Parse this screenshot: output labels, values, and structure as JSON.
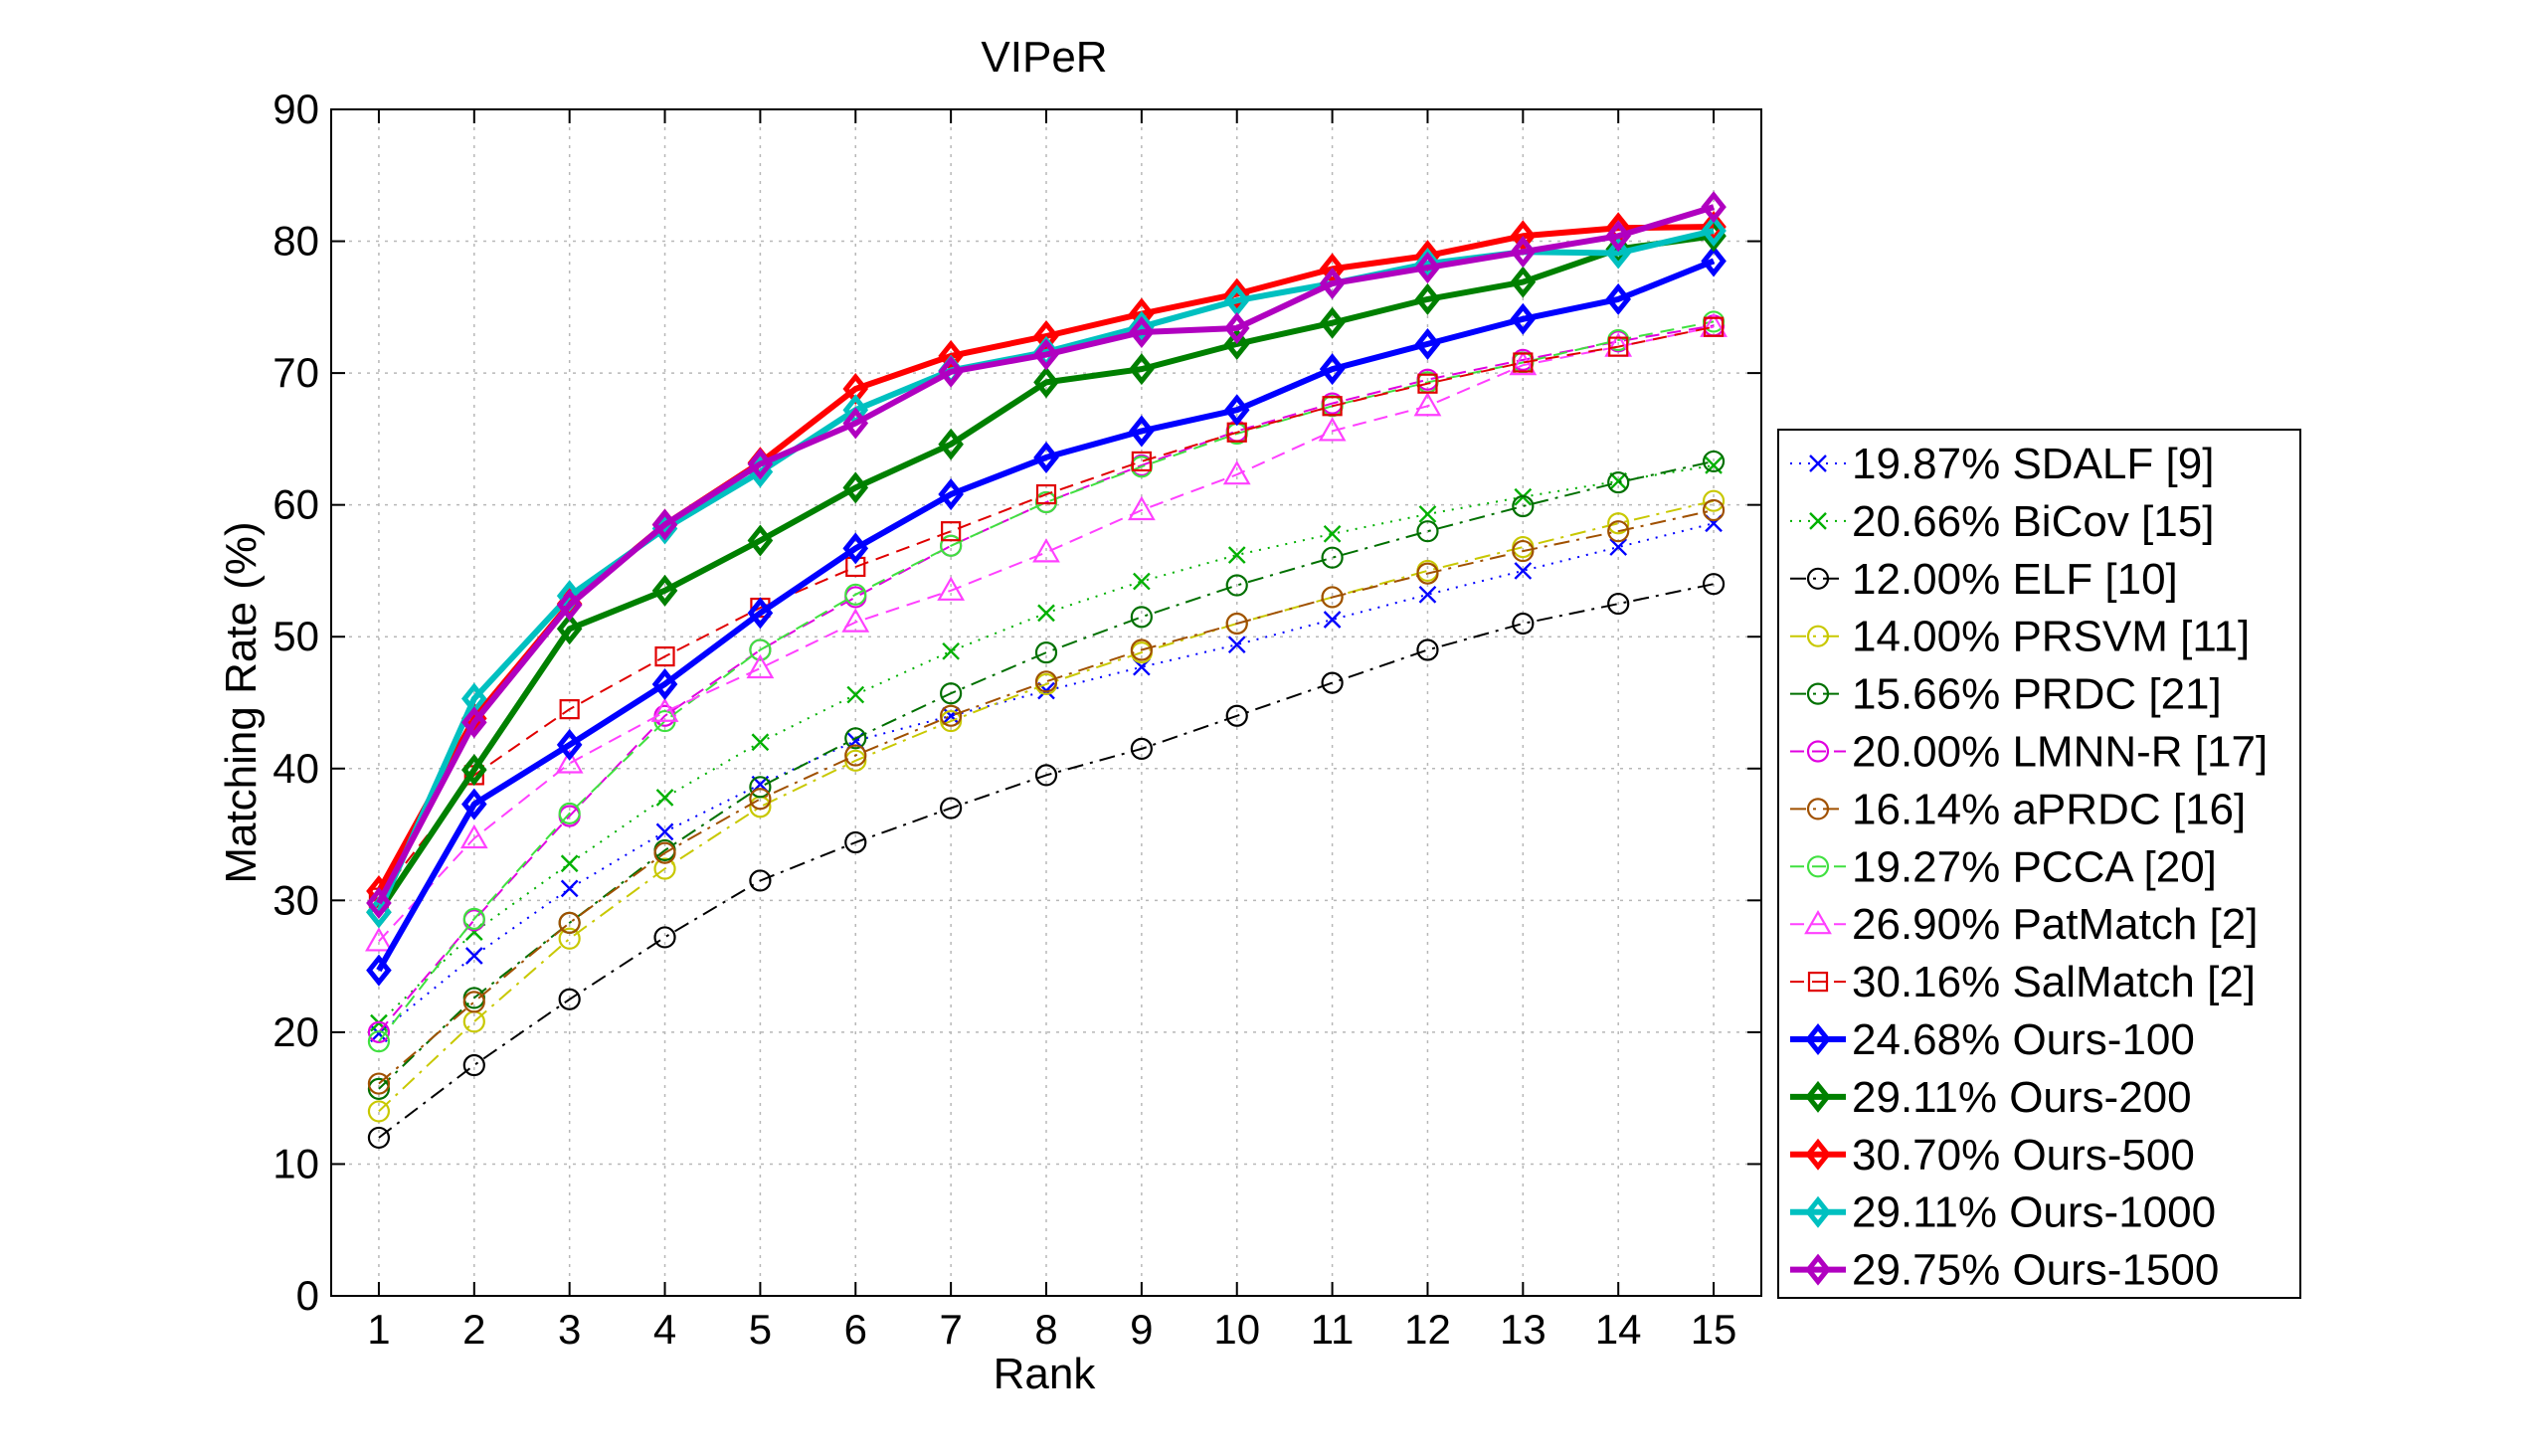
{
  "chart_data": {
    "type": "line",
    "title": "VIPeR",
    "xlabel": "Rank",
    "ylabel": "Matching Rate (%)",
    "xlim": [
      0.5,
      15.5
    ],
    "ylim": [
      0,
      90
    ],
    "x": [
      1,
      2,
      3,
      4,
      5,
      6,
      7,
      8,
      9,
      10,
      11,
      12,
      13,
      14,
      15
    ],
    "xticks": [
      "1",
      "2",
      "3",
      "4",
      "5",
      "6",
      "7",
      "8",
      "9",
      "10",
      "11",
      "12",
      "13",
      "14",
      "15"
    ],
    "yticks": [
      "0",
      "10",
      "20",
      "30",
      "40",
      "50",
      "60",
      "70",
      "80",
      "90"
    ],
    "grid": true,
    "legend_position": "right",
    "series": [
      {
        "name": "19.87% SDALF [9]",
        "color": "#0000ff",
        "marker": "x",
        "line": "dotted",
        "bold": false,
        "values": [
          19.9,
          25.8,
          30.9,
          35.2,
          38.8,
          42.1,
          44.0,
          45.9,
          47.7,
          49.4,
          51.3,
          53.2,
          55.0,
          56.8,
          58.6
        ]
      },
      {
        "name": "20.66% BiCov [15]",
        "color": "#00b000",
        "marker": "x",
        "line": "dotted",
        "bold": false,
        "values": [
          20.7,
          27.6,
          32.8,
          37.8,
          42.0,
          45.6,
          48.9,
          51.8,
          54.2,
          56.2,
          57.8,
          59.3,
          60.6,
          61.8,
          63.0
        ]
      },
      {
        "name": "12.00% ELF [10]",
        "color": "#000000",
        "marker": "circle",
        "line": "dashdot",
        "bold": false,
        "values": [
          12.0,
          17.5,
          22.5,
          27.2,
          31.5,
          34.4,
          37.0,
          39.5,
          41.5,
          44.0,
          46.5,
          49.0,
          51.0,
          52.5,
          54.0
        ]
      },
      {
        "name": "14.00% PRSVM [11]",
        "color": "#c8c800",
        "marker": "circle",
        "line": "dashdot",
        "bold": false,
        "values": [
          14.0,
          20.8,
          27.1,
          32.4,
          37.1,
          40.6,
          43.6,
          46.4,
          48.8,
          51.0,
          53.0,
          55.0,
          56.8,
          58.6,
          60.3
        ]
      },
      {
        "name": "15.66% PRDC [21]",
        "color": "#007000",
        "marker": "circle",
        "line": "dashdot",
        "bold": false,
        "values": [
          15.7,
          22.6,
          28.3,
          33.8,
          38.6,
          42.3,
          45.7,
          48.8,
          51.5,
          53.9,
          56.0,
          58.0,
          59.9,
          61.7,
          63.3
        ]
      },
      {
        "name": "20.00% LMNN-R [17]",
        "color": "#e000e0",
        "marker": "circle",
        "line": "dashed",
        "bold": false,
        "values": [
          20.0,
          28.5,
          36.4,
          44.0,
          49.0,
          53.0,
          56.9,
          60.2,
          63.0,
          65.6,
          67.7,
          69.5,
          71.0,
          72.4,
          73.6
        ]
      },
      {
        "name": "16.14% aPRDC [16]",
        "color": "#a05000",
        "marker": "circle",
        "line": "dashdot",
        "bold": false,
        "values": [
          16.1,
          22.3,
          28.3,
          33.6,
          37.7,
          41.0,
          44.0,
          46.6,
          49.0,
          51.0,
          53.0,
          54.8,
          56.5,
          58.0,
          59.6
        ]
      },
      {
        "name": "19.27% PCCA [20]",
        "color": "#40e040",
        "marker": "circle",
        "line": "dashed",
        "bold": false,
        "values": [
          19.3,
          28.6,
          36.6,
          43.6,
          49.0,
          53.2,
          56.9,
          60.2,
          62.9,
          65.4,
          67.5,
          69.3,
          70.8,
          72.5,
          73.9
        ]
      },
      {
        "name": "26.90% PatMatch [2]",
        "color": "#ff40ff",
        "marker": "triangle",
        "line": "dashed",
        "bold": false,
        "values": [
          26.9,
          34.7,
          40.4,
          44.3,
          47.6,
          51.1,
          53.5,
          56.4,
          59.6,
          62.3,
          65.6,
          67.5,
          70.6,
          72.0,
          73.5
        ]
      },
      {
        "name": "30.16% SalMatch [2]",
        "color": "#e00000",
        "marker": "square",
        "line": "dashed",
        "bold": false,
        "values": [
          30.2,
          39.5,
          44.5,
          48.5,
          52.2,
          55.3,
          58.0,
          60.8,
          63.3,
          65.5,
          67.5,
          69.2,
          70.8,
          72.0,
          73.5
        ]
      },
      {
        "name": "24.68% Ours-100",
        "color": "#0000ff",
        "marker": "diamond",
        "line": "solid",
        "bold": true,
        "values": [
          24.7,
          37.3,
          41.8,
          46.4,
          51.8,
          56.7,
          60.8,
          63.6,
          65.6,
          67.2,
          70.3,
          72.2,
          74.1,
          75.6,
          78.5
        ]
      },
      {
        "name": "29.11% Ours-200",
        "color": "#008000",
        "marker": "diamond",
        "line": "solid",
        "bold": true,
        "values": [
          29.1,
          39.9,
          50.6,
          53.5,
          57.3,
          61.3,
          64.6,
          69.3,
          70.3,
          72.2,
          73.8,
          75.6,
          76.9,
          79.4,
          80.4
        ]
      },
      {
        "name": "30.70% Ours-500",
        "color": "#ff0000",
        "marker": "diamond",
        "line": "solid",
        "bold": true,
        "values": [
          30.7,
          43.8,
          52.5,
          58.5,
          63.2,
          68.8,
          71.3,
          72.8,
          74.5,
          76.0,
          77.9,
          78.9,
          80.4,
          81.0,
          81.1
        ]
      },
      {
        "name": "29.11% Ours-1000",
        "color": "#00c0c0",
        "marker": "diamond",
        "line": "solid",
        "bold": true,
        "values": [
          29.1,
          45.3,
          53.1,
          58.2,
          62.5,
          67.2,
          70.2,
          71.6,
          73.5,
          75.5,
          76.8,
          78.3,
          79.2,
          79.1,
          80.8
        ]
      },
      {
        "name": "29.75% Ours-1500",
        "color": "#b000c0",
        "marker": "diamond",
        "line": "solid",
        "bold": true,
        "values": [
          29.8,
          43.5,
          52.4,
          58.5,
          63.1,
          66.2,
          70.1,
          71.4,
          73.1,
          73.4,
          76.8,
          78.0,
          79.2,
          80.4,
          82.6
        ]
      }
    ]
  }
}
